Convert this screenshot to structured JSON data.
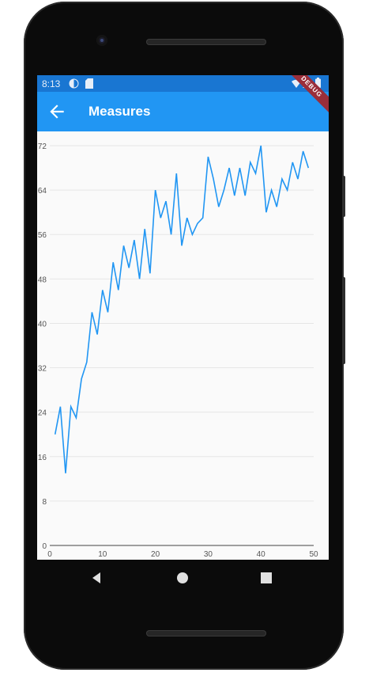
{
  "status_bar": {
    "time": "8:13"
  },
  "app_bar": {
    "title": "Measures",
    "back_icon": "arrow-back-icon"
  },
  "debug_banner": {
    "label": "DEBUG"
  },
  "colors": {
    "app_bar": "#2196f3",
    "status_bar": "#1976d2",
    "line": "#2196f3",
    "grid": "#e6e6e6"
  },
  "chart_data": {
    "type": "line",
    "title": "",
    "xlabel": "",
    "ylabel": "",
    "xlim": [
      0,
      50
    ],
    "ylim": [
      0,
      72
    ],
    "x_ticks": [
      "0",
      "10",
      "20",
      "30",
      "40",
      "50"
    ],
    "y_ticks": [
      "0",
      "8",
      "16",
      "24",
      "32",
      "40",
      "48",
      "56",
      "64",
      "72"
    ],
    "grid": true,
    "series": [
      {
        "x": [
          1,
          2,
          3,
          4,
          5,
          6,
          7,
          8,
          9,
          10,
          11,
          12,
          13,
          14,
          15,
          16,
          17,
          18,
          19,
          20,
          21,
          22,
          23,
          24,
          25,
          26,
          27,
          28,
          29,
          30,
          31,
          32,
          33,
          34,
          35,
          36,
          37,
          38,
          39,
          40,
          41,
          42,
          43,
          44,
          45,
          46,
          47,
          48,
          49
        ],
        "values": [
          20,
          25,
          13,
          25,
          23,
          30,
          33,
          42,
          38,
          46,
          42,
          51,
          46,
          54,
          50,
          55,
          48,
          57,
          49,
          64,
          59,
          62,
          56,
          67,
          54,
          59,
          56,
          58,
          59,
          70,
          66,
          61,
          64,
          68,
          63,
          68,
          63,
          69,
          67,
          72,
          60,
          64,
          61,
          66,
          64,
          69,
          66,
          71,
          68
        ]
      }
    ]
  },
  "nav_bar": {
    "back_icon": "nav-back-icon",
    "home_icon": "nav-home-icon",
    "recents_icon": "nav-recents-icon"
  }
}
